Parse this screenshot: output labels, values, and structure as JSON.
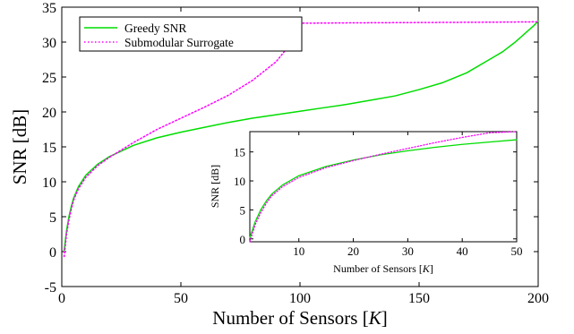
{
  "chart_data": [
    {
      "type": "line",
      "xlabel_prefix": "Number of Sensors ",
      "xlabel_var": "K",
      "ylabel": "SNR [dB]",
      "xlim": [
        0,
        200
      ],
      "ylim": [
        -5,
        35
      ],
      "xticks": [
        0,
        50,
        100,
        150,
        200
      ],
      "yticks": [
        -5,
        0,
        5,
        10,
        15,
        20,
        25,
        30,
        35
      ],
      "legend_position": "top-left",
      "grid": false,
      "series": [
        {
          "name": "Greedy SNR",
          "color": "#00dd00",
          "style": "solid",
          "x": [
            1,
            2,
            3,
            4,
            5,
            7,
            10,
            15,
            20,
            30,
            40,
            50,
            60,
            70,
            80,
            90,
            100,
            110,
            120,
            130,
            140,
            150,
            160,
            170,
            180,
            185,
            190,
            193,
            196,
            198,
            200
          ],
          "y": [
            0.2,
            3.0,
            5.0,
            6.5,
            7.7,
            9.3,
            10.9,
            12.5,
            13.6,
            15.2,
            16.3,
            17.1,
            17.8,
            18.5,
            19.1,
            19.6,
            20.1,
            20.6,
            21.1,
            21.7,
            22.3,
            23.2,
            24.2,
            25.6,
            27.6,
            28.6,
            29.9,
            30.8,
            31.7,
            32.3,
            33.0
          ]
        },
        {
          "name": "Submodular Surrogate",
          "color": "#ff00ff",
          "style": "dotted",
          "x": [
            1,
            2,
            3,
            4,
            5,
            7,
            10,
            15,
            20,
            30,
            40,
            50,
            60,
            70,
            80,
            90,
            95,
            98,
            100,
            101,
            120,
            150,
            180,
            200
          ],
          "y": [
            -0.7,
            2.5,
            4.5,
            6.1,
            7.4,
            9.0,
            10.6,
            12.3,
            13.5,
            15.6,
            17.5,
            19.1,
            20.7,
            22.4,
            24.5,
            27.2,
            29.3,
            31.2,
            32.5,
            32.7,
            32.75,
            32.8,
            32.85,
            32.9
          ]
        }
      ]
    },
    {
      "type": "line",
      "xlabel_prefix": "Number of Sensors ",
      "xlabel_var": "K",
      "ylabel": "SNR [dB]",
      "xlim": [
        1,
        50
      ],
      "ylim": [
        -0.5,
        18.5
      ],
      "xticks": [
        10,
        20,
        30,
        40,
        50
      ],
      "yticks": [
        0,
        5,
        10,
        15
      ],
      "grid": false,
      "series": [
        {
          "color": "#00dd00",
          "style": "solid",
          "x": [
            1,
            2,
            3,
            4,
            5,
            7,
            10,
            15,
            20,
            25,
            30,
            35,
            40,
            45,
            50
          ],
          "y": [
            0.2,
            3.0,
            5.0,
            6.5,
            7.7,
            9.3,
            10.9,
            12.5,
            13.6,
            14.5,
            15.2,
            15.8,
            16.3,
            16.7,
            17.1
          ]
        },
        {
          "color": "#ff00ff",
          "style": "dotted",
          "x": [
            1,
            2,
            3,
            4,
            5,
            7,
            10,
            15,
            20,
            25,
            30,
            35,
            40,
            45,
            50
          ],
          "y": [
            -0.7,
            2.5,
            4.5,
            6.1,
            7.4,
            9.0,
            10.6,
            12.3,
            13.5,
            14.6,
            15.6,
            16.6,
            17.5,
            18.3,
            19.1
          ]
        }
      ]
    }
  ]
}
